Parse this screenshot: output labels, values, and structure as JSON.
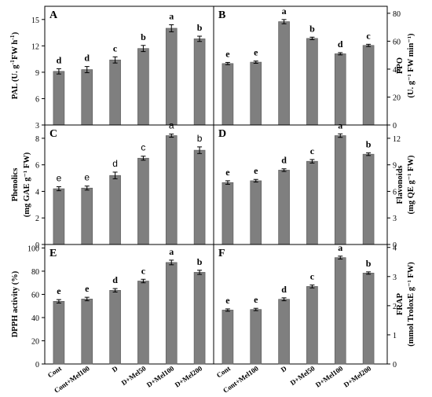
{
  "figure": {
    "categories": [
      "Cont",
      "Cont+Mel100",
      "D",
      "D+Mel50",
      "D+Mel100",
      "D+Mel200"
    ]
  },
  "chart_data": [
    {
      "type": "bar",
      "panel": "A",
      "axis_side": "left",
      "ylabel_line1": "PAL (U. g",
      "ylabel_sup1": "-1",
      "ylabel_mid": " FW h",
      "ylabel_sup2": "-1",
      "ylabel_end": ")",
      "ylabel2": "",
      "ylim": [
        3,
        16.5
      ],
      "yticks": [
        3,
        6,
        9,
        12,
        15
      ],
      "values": [
        9.1,
        9.3,
        10.4,
        11.7,
        14.0,
        12.8
      ],
      "errors": [
        0.3,
        0.35,
        0.35,
        0.35,
        0.4,
        0.3
      ],
      "letters": [
        "d",
        "d",
        "c",
        "b",
        "a",
        "b"
      ],
      "letter_style": "serif"
    },
    {
      "type": "bar",
      "panel": "B",
      "axis_side": "right",
      "ylabel_line1": "PPO",
      "ylabel_sup1": "",
      "ylabel_mid": "",
      "ylabel_sup2": "",
      "ylabel_end": "",
      "ylabel2": "(U. g⁻¹ FW min⁻¹)",
      "ylim": [
        0,
        85
      ],
      "yticks": [
        0,
        20,
        40,
        60,
        80
      ],
      "values": [
        44,
        45,
        74,
        62,
        51,
        57
      ],
      "errors": [
        0.8,
        0.8,
        1.5,
        0.9,
        0.8,
        0.8
      ],
      "letters": [
        "e",
        "e",
        "a",
        "b",
        "d",
        "c"
      ],
      "letter_style": "serif"
    },
    {
      "type": "bar",
      "panel": "C",
      "axis_side": "left",
      "ylabel_line1": "Phenolics",
      "ylabel_sup1": "",
      "ylabel_mid": "",
      "ylabel_sup2": "",
      "ylabel_end": "",
      "ylabel2": "(mg GAE g⁻¹ FW)",
      "ylim": [
        0,
        9
      ],
      "yticks": [
        0,
        2,
        4,
        6,
        8
      ],
      "values": [
        4.2,
        4.25,
        5.2,
        6.5,
        8.2,
        7.1
      ],
      "errors": [
        0.15,
        0.15,
        0.25,
        0.15,
        0.12,
        0.25
      ],
      "letters": [
        "e",
        "e",
        "d",
        "c",
        "a",
        "b"
      ],
      "letter_style": "sans"
    },
    {
      "type": "bar",
      "panel": "D",
      "axis_side": "right",
      "ylabel_line1": "Flavonoids",
      "ylabel_sup1": "",
      "ylabel_mid": "",
      "ylabel_sup2": "",
      "ylabel_end": "",
      "ylabel2": "(mg QE g⁻¹ FW)",
      "ylim": [
        0,
        13.5
      ],
      "yticks": [
        0,
        3,
        6,
        9,
        12
      ],
      "values": [
        7.0,
        7.2,
        8.4,
        9.4,
        12.3,
        10.2
      ],
      "errors": [
        0.2,
        0.15,
        0.15,
        0.2,
        0.2,
        0.15
      ],
      "letters": [
        "e",
        "e",
        "d",
        "c",
        "a",
        "b"
      ],
      "letter_style": "serif"
    },
    {
      "type": "bar",
      "panel": "E",
      "axis_side": "left",
      "ylabel_line1": "DPPH activity (%)",
      "ylabel_sup1": "",
      "ylabel_mid": "",
      "ylabel_sup2": "",
      "ylabel_end": "",
      "ylabel2": "",
      "ylim": [
        0,
        103
      ],
      "yticks": [
        0,
        20,
        40,
        60,
        80,
        100
      ],
      "values": [
        54,
        56,
        63.5,
        71.5,
        87.5,
        79
      ],
      "errors": [
        1.5,
        1.5,
        1.5,
        1.5,
        2.0,
        1.8
      ],
      "letters": [
        "e",
        "e",
        "d",
        "c",
        "a",
        "b"
      ],
      "letter_style": "serif"
    },
    {
      "type": "bar",
      "panel": "F",
      "axis_side": "right",
      "ylabel_line1": "FRAP",
      "ylabel_sup1": "",
      "ylabel_mid": "",
      "ylabel_sup2": "",
      "ylabel_end": "",
      "ylabel2": "(mmol TroloxE g⁻¹ FW)",
      "ylim": [
        0,
        4.1
      ],
      "yticks": [
        0,
        1,
        2,
        3,
        4
      ],
      "values": [
        1.85,
        1.87,
        2.22,
        2.66,
        3.65,
        3.12
      ],
      "errors": [
        0.04,
        0.04,
        0.05,
        0.05,
        0.05,
        0.04
      ],
      "letters": [
        "e",
        "e",
        "d",
        "c",
        "a",
        "b"
      ],
      "letter_style": "serif"
    }
  ],
  "colors": {
    "bar": "#7f7f7f",
    "axis": "#000000",
    "bar_edge": "#555555"
  }
}
